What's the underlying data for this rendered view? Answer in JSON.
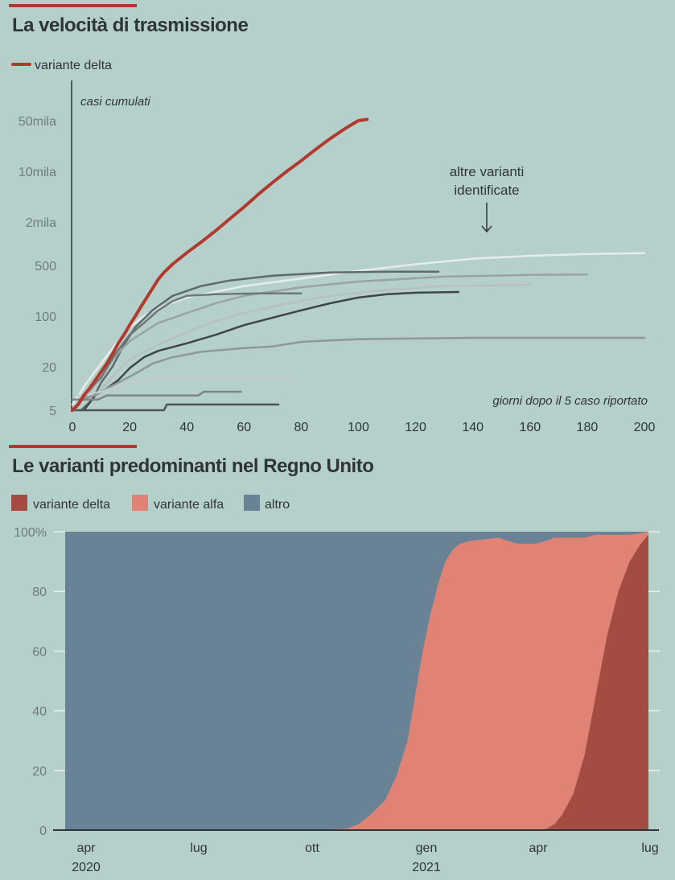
{
  "colors": {
    "background": "#b5d0cb",
    "accent": "#b03a2e",
    "delta": "#a24c42",
    "alfa": "#e08375",
    "altro": "#698295",
    "text": "#2f3535",
    "tick_text": "#6e7b78"
  },
  "chart_data": [
    {
      "type": "line",
      "title": "La velocità di trasmissione",
      "legend": [
        {
          "label": "variante delta",
          "color": "#b03a2e"
        }
      ],
      "legend_placement": "top-left",
      "ylabel": "casi cumulati",
      "xlabel": "giorni dopo il 5 caso riportato",
      "yscale": "log",
      "ylim": [
        5,
        50000
      ],
      "xlim": [
        0,
        200
      ],
      "x_ticks": [
        "0",
        "20",
        "40",
        "60",
        "80",
        "100",
        "120",
        "140",
        "160",
        "180",
        "200"
      ],
      "y_ticks": [
        {
          "value": 5,
          "label": "5"
        },
        {
          "value": 20,
          "label": "20"
        },
        {
          "value": 100,
          "label": "100"
        },
        {
          "value": 500,
          "label": "500"
        },
        {
          "value": 2000,
          "label": "2mila"
        },
        {
          "value": 10000,
          "label": "10mila"
        },
        {
          "value": 50000,
          "label": "50mila"
        }
      ],
      "annotation": {
        "lines": [
          "altre varianti",
          "identificate"
        ]
      },
      "series": [
        {
          "name": "variante delta",
          "color": "#b03a2e",
          "width": 4,
          "points": [
            [
              0,
              5
            ],
            [
              2,
              6
            ],
            [
              4,
              8
            ],
            [
              6,
              10
            ],
            [
              8,
              13
            ],
            [
              10,
              17
            ],
            [
              12,
              22
            ],
            [
              14,
              30
            ],
            [
              16,
              42
            ],
            [
              18,
              55
            ],
            [
              20,
              75
            ],
            [
              22,
              100
            ],
            [
              24,
              135
            ],
            [
              26,
              180
            ],
            [
              28,
              240
            ],
            [
              30,
              320
            ],
            [
              32,
              400
            ],
            [
              35,
              520
            ],
            [
              40,
              750
            ],
            [
              45,
              1050
            ],
            [
              50,
              1500
            ],
            [
              55,
              2200
            ],
            [
              60,
              3200
            ],
            [
              65,
              4800
            ],
            [
              70,
              7000
            ],
            [
              75,
              10000
            ],
            [
              80,
              14000
            ],
            [
              85,
              20000
            ],
            [
              90,
              28000
            ],
            [
              95,
              38000
            ],
            [
              98,
              45000
            ],
            [
              100,
              50000
            ],
            [
              103,
              52000
            ]
          ]
        },
        {
          "name": "altra variante 1",
          "color": "#e6eceb",
          "width": 2.5,
          "points": [
            [
              0,
              6
            ],
            [
              5,
              12
            ],
            [
              10,
              22
            ],
            [
              15,
              40
            ],
            [
              20,
              70
            ],
            [
              25,
              100
            ],
            [
              30,
              130
            ],
            [
              40,
              180
            ],
            [
              60,
              260
            ],
            [
              80,
              330
            ],
            [
              100,
              420
            ],
            [
              120,
              520
            ],
            [
              140,
              620
            ],
            [
              160,
              680
            ],
            [
              180,
              720
            ],
            [
              200,
              740
            ]
          ]
        },
        {
          "name": "altra variante 2",
          "color": "#5f6a69",
          "width": 2.5,
          "points": [
            [
              3,
              5
            ],
            [
              7,
              7
            ],
            [
              10,
              12
            ],
            [
              14,
              20
            ],
            [
              18,
              40
            ],
            [
              22,
              70
            ],
            [
              28,
              120
            ],
            [
              35,
              190
            ],
            [
              45,
              260
            ],
            [
              55,
              310
            ],
            [
              70,
              360
            ],
            [
              90,
              400
            ],
            [
              110,
              410
            ],
            [
              128,
              410
            ]
          ]
        },
        {
          "name": "altra variante 3",
          "color": "#9aa3a2",
          "width": 2.5,
          "points": [
            [
              2,
              6
            ],
            [
              6,
              9
            ],
            [
              10,
              15
            ],
            [
              15,
              28
            ],
            [
              20,
              45
            ],
            [
              30,
              80
            ],
            [
              40,
              110
            ],
            [
              50,
              150
            ],
            [
              60,
              190
            ],
            [
              80,
              250
            ],
            [
              100,
              300
            ],
            [
              130,
              350
            ],
            [
              160,
              370
            ],
            [
              180,
              375
            ]
          ]
        },
        {
          "name": "altra variante 4",
          "color": "#b8c0bf",
          "width": 2.5,
          "points": [
            [
              4,
              5
            ],
            [
              8,
              8
            ],
            [
              12,
              12
            ],
            [
              16,
              18
            ],
            [
              20,
              25
            ],
            [
              30,
              40
            ],
            [
              40,
              60
            ],
            [
              50,
              85
            ],
            [
              60,
              110
            ],
            [
              75,
              150
            ],
            [
              90,
              190
            ],
            [
              110,
              230
            ],
            [
              130,
              260
            ],
            [
              160,
              270
            ]
          ]
        },
        {
          "name": "altra variante 5",
          "color": "#6d7776",
          "width": 2.5,
          "points": [
            [
              2,
              6
            ],
            [
              5,
              9
            ],
            [
              10,
              14
            ],
            [
              15,
              30
            ],
            [
              20,
              55
            ],
            [
              25,
              80
            ],
            [
              30,
              120
            ],
            [
              35,
              160
            ],
            [
              40,
              190
            ],
            [
              50,
              200
            ],
            [
              65,
              205
            ],
            [
              80,
              205
            ]
          ]
        },
        {
          "name": "altra variante 6",
          "color": "#3e4645",
          "width": 2.5,
          "points": [
            [
              4,
              5
            ],
            [
              8,
              8
            ],
            [
              12,
              10
            ],
            [
              16,
              13
            ],
            [
              20,
              19
            ],
            [
              25,
              27
            ],
            [
              30,
              33
            ],
            [
              40,
              42
            ],
            [
              50,
              55
            ],
            [
              60,
              75
            ],
            [
              70,
              95
            ],
            [
              80,
              120
            ],
            [
              90,
              150
            ],
            [
              100,
              180
            ],
            [
              110,
              200
            ],
            [
              120,
              210
            ],
            [
              135,
              215
            ]
          ]
        },
        {
          "name": "altra variante 7",
          "color": "#8f9897",
          "width": 2.5,
          "points": [
            [
              2,
              7
            ],
            [
              8,
              8
            ],
            [
              12,
              10
            ],
            [
              16,
              12
            ],
            [
              22,
              16
            ],
            [
              28,
              22
            ],
            [
              35,
              27
            ],
            [
              45,
              32
            ],
            [
              60,
              36
            ],
            [
              70,
              38
            ],
            [
              80,
              44
            ],
            [
              100,
              48
            ],
            [
              140,
              50
            ],
            [
              200,
              50
            ]
          ]
        },
        {
          "name": "altra variante 8",
          "color": "#c4cccb",
          "width": 2.5,
          "points": [
            [
              2,
              8
            ],
            [
              10,
              9
            ],
            [
              20,
              12
            ],
            [
              30,
              14
            ],
            [
              40,
              14
            ],
            [
              78,
              14
            ]
          ]
        },
        {
          "name": "altra variante 9",
          "color": "#7c8685",
          "width": 2.5,
          "points": [
            [
              0,
              7
            ],
            [
              2,
              7
            ],
            [
              9,
              7
            ],
            [
              12,
              8
            ],
            [
              40,
              8
            ],
            [
              44,
              8
            ],
            [
              46,
              9
            ],
            [
              59,
              9
            ]
          ]
        },
        {
          "name": "altra variante 10",
          "color": "#4c5655",
          "width": 2.5,
          "points": [
            [
              0,
              5
            ],
            [
              32,
              5
            ],
            [
              33,
              6
            ],
            [
              72,
              6
            ]
          ]
        }
      ]
    },
    {
      "type": "area",
      "stacked": true,
      "title": "Le varianti predominanti nel Regno Unito",
      "legend": [
        {
          "label": "variante delta",
          "color": "#a24c42"
        },
        {
          "label": "variante alfa",
          "color": "#e08375"
        },
        {
          "label": "altro",
          "color": "#698295"
        }
      ],
      "legend_placement": "top-left",
      "ylim": [
        0,
        100
      ],
      "y_ticks": [
        "0",
        "20",
        "40",
        "60",
        "80",
        "100%"
      ],
      "x_ticks": [
        {
          "month": "apr",
          "year": "2020"
        },
        {
          "month": "lug",
          "year": ""
        },
        {
          "month": "ott",
          "year": ""
        },
        {
          "month": "gen",
          "year": "2021"
        },
        {
          "month": "apr",
          "year": ""
        },
        {
          "month": "lug",
          "year": ""
        }
      ],
      "x_unit": "months since 2020-04-01",
      "x": [
        -0.5,
        0,
        3,
        6,
        7,
        7.3,
        7.6,
        8.0,
        8.3,
        8.6,
        8.8,
        9.0,
        9.2,
        9.4,
        9.6,
        9.8,
        10.0,
        10.3,
        10.7,
        11.0,
        11.5,
        12.0,
        12.3,
        12.5,
        12.7,
        13.0,
        13.3,
        13.6,
        13.9,
        14.2,
        14.5,
        14.8,
        15.0
      ],
      "series": [
        {
          "name": "variante delta",
          "values": [
            0,
            0,
            0,
            0,
            0,
            0,
            0,
            0,
            0,
            0,
            0,
            0,
            0,
            0,
            0,
            0,
            0,
            0,
            0,
            0,
            0,
            0,
            0.5,
            2,
            5,
            12,
            25,
            45,
            65,
            80,
            90,
            96,
            99
          ]
        },
        {
          "name": "variante alfa",
          "values": [
            0,
            0,
            0,
            0,
            0.5,
            2,
            5,
            10,
            18,
            30,
            45,
            60,
            72,
            82,
            90,
            94,
            96,
            97,
            97.5,
            98,
            96,
            96,
            96.5,
            96,
            93,
            86,
            73,
            54,
            34,
            19,
            9,
            3.5,
            1
          ]
        },
        {
          "name": "altro",
          "values": [
            100,
            100,
            100,
            100,
            99.5,
            98,
            95,
            90,
            82,
            70,
            55,
            40,
            28,
            18,
            10,
            6,
            4,
            3,
            2.5,
            2,
            4,
            4,
            3,
            2,
            2,
            2,
            2,
            1,
            1,
            1,
            1,
            0.5,
            0
          ]
        }
      ]
    }
  ]
}
